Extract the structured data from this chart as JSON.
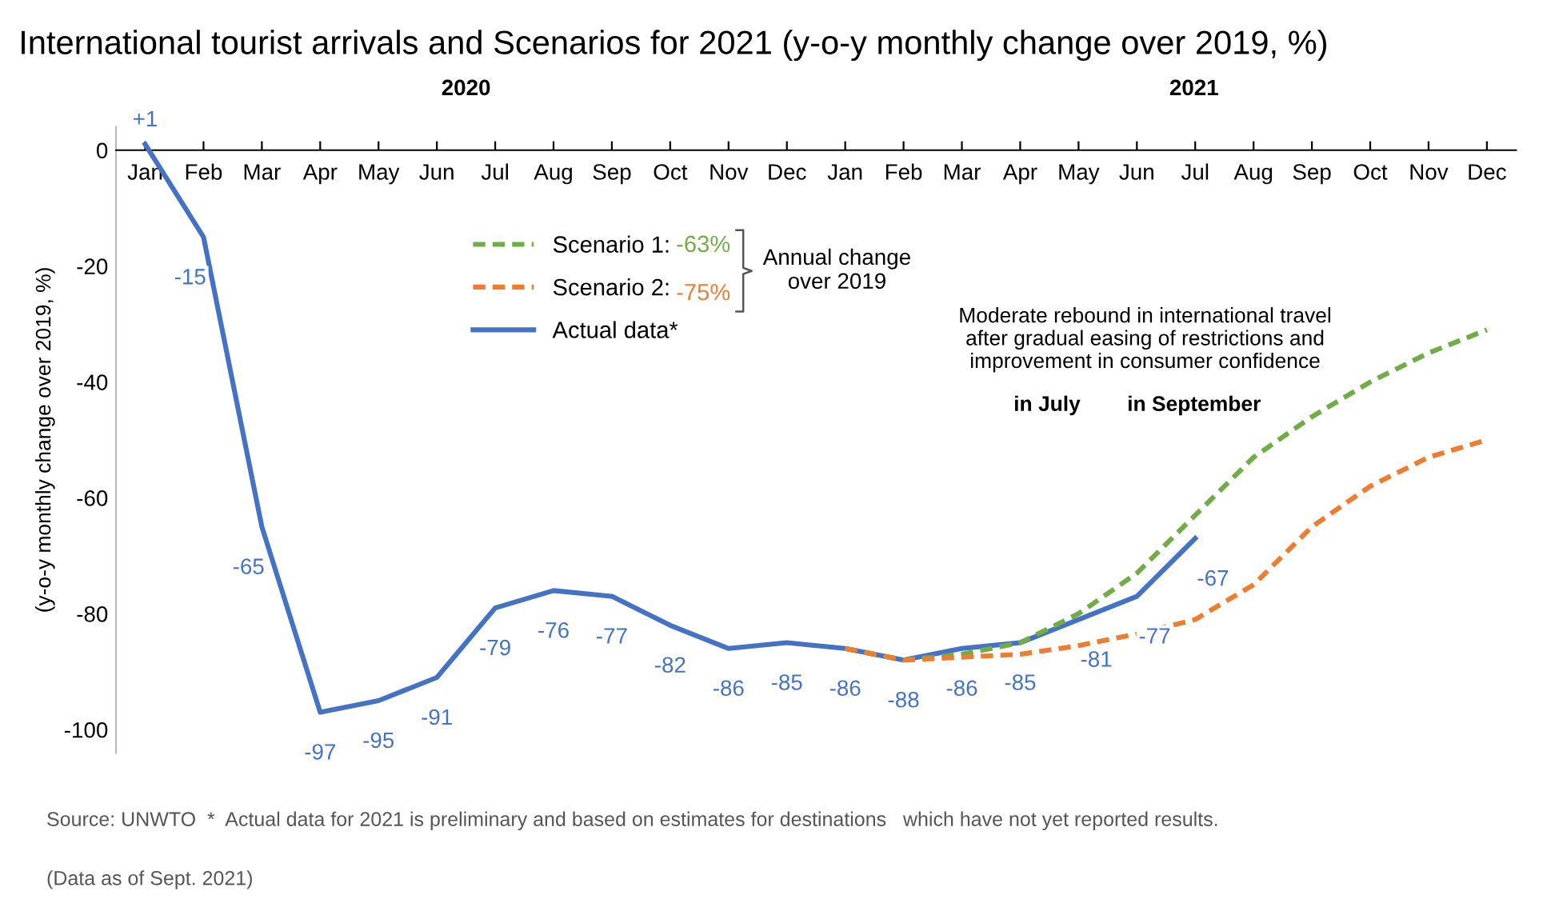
{
  "chart_data": {
    "type": "line",
    "title": "International tourist arrivals and Scenarios for 2021 (y-o-y monthly change over 2019, %)",
    "ylabel": "(y-o-y monthly change over 2019, %)",
    "categories": [
      "Jan",
      "Feb",
      "Mar",
      "Apr",
      "May",
      "Jun",
      "Jul",
      "Aug",
      "Sep",
      "Oct",
      "Nov",
      "Dec",
      "Jan",
      "Feb",
      "Mar",
      "Apr",
      "May",
      "Jun",
      "Jul",
      "Aug",
      "Sep",
      "Oct",
      "Nov",
      "Dec"
    ],
    "ylim": [
      -104,
      4
    ],
    "yticks": [
      0,
      -20,
      -40,
      -60,
      -80,
      -100
    ],
    "series": [
      {
        "name": "Scenario 1:",
        "color": "#70ad47",
        "line_style": "dashed",
        "values": [
          null,
          null,
          null,
          null,
          null,
          null,
          null,
          null,
          null,
          null,
          null,
          null,
          -86,
          -88,
          -87,
          -85,
          -80,
          -73,
          -63,
          -53,
          -46,
          -40,
          -35,
          -31
        ]
      },
      {
        "name": "Scenario 2:",
        "color": "#ed7d31",
        "line_style": "dashed",
        "values": [
          null,
          null,
          null,
          null,
          null,
          null,
          null,
          null,
          null,
          null,
          null,
          null,
          -86,
          -88,
          -87.5,
          -87,
          -85.5,
          -83.5,
          -81,
          -75,
          -65,
          -58,
          -53,
          -50
        ]
      },
      {
        "name": "Actual data*",
        "color": "#4472c4",
        "line_style": "solid",
        "values": [
          1,
          -15,
          -65,
          -97,
          -95,
          -91,
          -79,
          -76,
          -77,
          -82,
          -86,
          -85,
          -86,
          -88,
          -86,
          -85,
          -81,
          -77,
          -67,
          null,
          null,
          null,
          null,
          null
        ],
        "value_labels": [
          "+1",
          "-15",
          "-65",
          "-97",
          "-95",
          "-91",
          "-79",
          "-76",
          "-77",
          "-82",
          "-86",
          "-85",
          "-86",
          "-88",
          "-86",
          "-85",
          "-81",
          "-77",
          "-67",
          null,
          null,
          null,
          null,
          null
        ]
      }
    ],
    "legend": "top",
    "grid": false,
    "marker": "none",
    "annotations": [
      "2020",
      "2021",
      "-63%",
      "-75%",
      "Annual change\nover 2019",
      "Moderate rebound in international travel\nafter gradual easing of restrictions and\nimprovement in consumer confidence",
      "in July",
      "in September",
      "Source: UNWTO  *  Actual data for 2021 is preliminary and based on estimates for destinations   which have not yet reported results.",
      "(Data as of Sept. 2021)"
    ]
  }
}
